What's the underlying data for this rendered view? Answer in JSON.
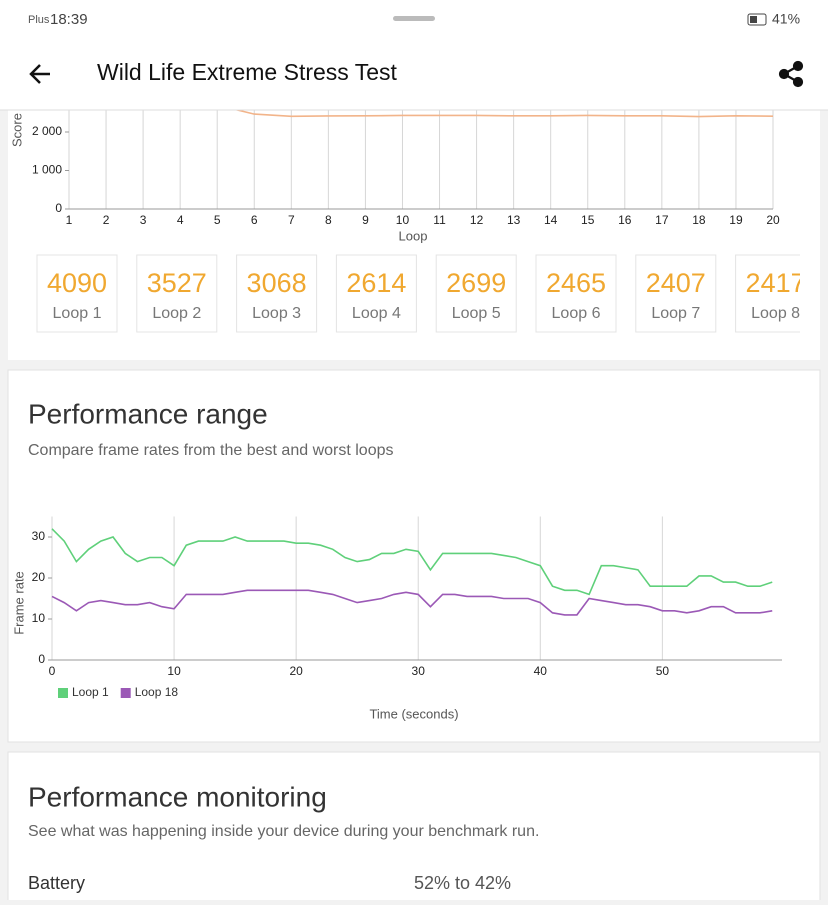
{
  "status_bar": {
    "carrier": "Plus",
    "time": "18:39",
    "battery": "41%"
  },
  "header": {
    "title": "Wild Life Extreme Stress Test"
  },
  "loop_cards": {
    "labels": [
      "Loop 1",
      "Loop 2",
      "Loop 3",
      "Loop 4",
      "Loop 5",
      "Loop 6",
      "Loop 7",
      "Loop 8"
    ]
  },
  "range_section": {
    "title": "Performance range",
    "subtitle": "Compare frame rates from the best and worst loops"
  },
  "monitoring_section": {
    "title": "Performance monitoring",
    "subtitle": "See what was happening inside your device during your benchmark run.",
    "rows": [
      [
        "Battery",
        "52% to 42%"
      ]
    ]
  },
  "chart_data": [
    {
      "type": "line",
      "y_label": "Score",
      "x_label": "Loop",
      "color": "#f2b48a",
      "card_color": "#f0a830",
      "x": [
        1,
        2,
        3,
        4,
        5,
        6,
        7,
        8,
        9,
        10,
        11,
        12,
        13,
        14,
        15,
        16,
        17,
        18,
        19,
        20
      ],
      "values": [
        4090,
        3527,
        3068,
        2614,
        2699,
        2465,
        2407,
        2417,
        2420,
        2430,
        2430,
        2430,
        2420,
        2420,
        2430,
        2420,
        2420,
        2400,
        2420,
        2410
      ],
      "xlim": [
        1,
        20
      ],
      "xticks": [
        1,
        2,
        3,
        4,
        5,
        6,
        7,
        8,
        9,
        10,
        11,
        12,
        13,
        14,
        15,
        16,
        17,
        18,
        19,
        20
      ],
      "ylim": [
        0,
        4500
      ],
      "yticks": [
        0,
        {
          "value": 1000,
          "label": "1 000"
        },
        {
          "value": 2000,
          "label": "2 000"
        }
      ],
      "grid": true
    },
    {
      "type": "line",
      "y_label": "Frame rate",
      "x_label": "Time (seconds)",
      "legend": "bottom-left",
      "grid": true,
      "x": [
        0,
        1,
        2,
        3,
        4,
        5,
        6,
        7,
        8,
        9,
        10,
        11,
        12,
        13,
        14,
        15,
        16,
        17,
        18,
        19,
        20,
        21,
        22,
        23,
        24,
        25,
        26,
        27,
        28,
        29,
        30,
        31,
        32,
        33,
        34,
        35,
        36,
        37,
        38,
        39,
        40,
        41,
        42,
        43,
        44,
        45,
        46,
        47,
        48,
        49,
        50,
        51,
        52,
        53,
        54,
        55,
        56,
        57,
        58,
        59
      ],
      "series": [
        {
          "name": "Loop 1",
          "color": "#5fd07a",
          "values": [
            32,
            29,
            24,
            27,
            29,
            30,
            26,
            24,
            25,
            25,
            23,
            28,
            29,
            29,
            29,
            30,
            29,
            29,
            29,
            29,
            28.5,
            28.5,
            28,
            27,
            25,
            24,
            24.5,
            26,
            26,
            27,
            26.5,
            22,
            26,
            26,
            26,
            26,
            26,
            25.5,
            25,
            24,
            23,
            18,
            17,
            17,
            16,
            23,
            23,
            22.5,
            22,
            18,
            18,
            18,
            18,
            20.5,
            20.5,
            19,
            19,
            18,
            18,
            19
          ]
        },
        {
          "name": "Loop 18",
          "color": "#9b59b6",
          "values": [
            15.5,
            14,
            12,
            14,
            14.5,
            14,
            13.5,
            13.5,
            14,
            13,
            12.5,
            16,
            16,
            16,
            16,
            16.5,
            17,
            17,
            17,
            17,
            17,
            17,
            16.5,
            16,
            15,
            14,
            14.5,
            15,
            16,
            16.5,
            16,
            13,
            16,
            16,
            15.5,
            15.5,
            15.5,
            15,
            15,
            15,
            14,
            11.5,
            11,
            11,
            15,
            14.5,
            14,
            13.5,
            13.5,
            13,
            12,
            12,
            11.5,
            12,
            13,
            13,
            11.5,
            11.5,
            11.5,
            12
          ]
        }
      ],
      "xlim": [
        0,
        59.8
      ],
      "xticks": [
        0,
        10,
        20,
        30,
        40,
        50
      ],
      "ylim": [
        0,
        35
      ],
      "yticks": [
        0,
        10,
        20,
        30
      ]
    }
  ]
}
